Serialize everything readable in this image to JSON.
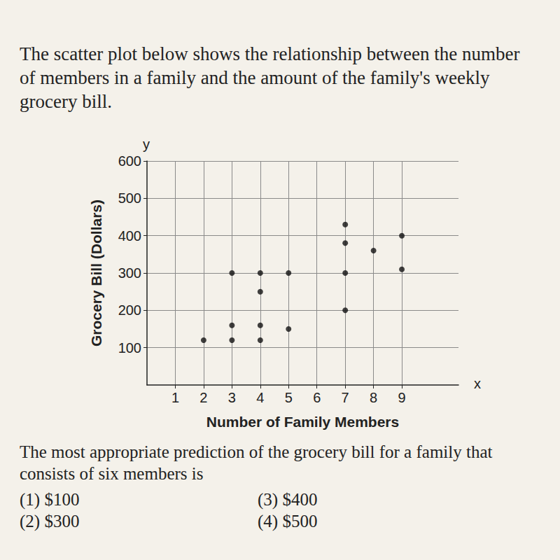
{
  "chart_data": {
    "type": "scatter",
    "title": "The scatter plot below shows the relationship between the number of members in a family and the amount of the family's weekly grocery bill.",
    "x_label": "Number of Family Members",
    "y_label": "Grocery Bill (Dollars)",
    "annotations": {
      "axis_letters": [
        "x",
        "y"
      ],
      "question": "The most appropriate prediction of the grocery bill for a family that consists of six members is",
      "choices": [
        "(1) $100",
        "(3) $400",
        "(2) $300",
        "(4) $500"
      ]
    },
    "x": [
      2,
      3,
      3,
      3,
      4,
      4,
      4,
      4,
      5,
      5,
      7,
      7,
      7,
      7,
      8,
      9,
      9
    ],
    "values": [
      120,
      300,
      160,
      120,
      300,
      250,
      160,
      120,
      300,
      150,
      430,
      380,
      300,
      200,
      360,
      400,
      310
    ],
    "xlim": [
      0,
      11
    ],
    "xticks": [
      1,
      2,
      3,
      4,
      5,
      6,
      7,
      8,
      9
    ],
    "ylim": [
      0,
      600
    ],
    "yticks": [
      100,
      200,
      300,
      400,
      500,
      600
    ],
    "color": "#111111",
    "marker": "circle",
    "grid": true
  }
}
